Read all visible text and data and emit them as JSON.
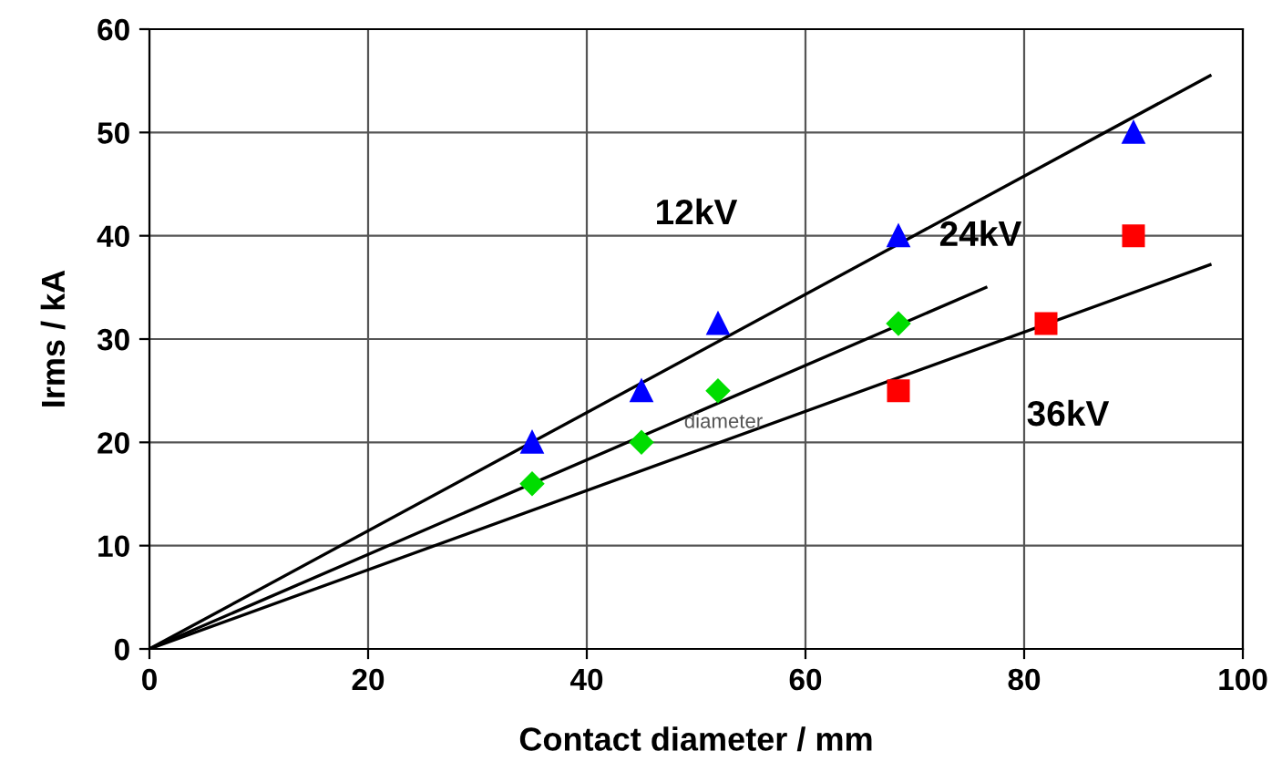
{
  "chart_data": {
    "type": "scatter",
    "xlabel": "Contact diameter / mm",
    "ylabel": "Irms / kA",
    "xlim": [
      0,
      100
    ],
    "xticks": [
      0,
      20,
      40,
      60,
      80,
      100
    ],
    "ylim": [
      0,
      60
    ],
    "yticks": [
      0,
      10,
      20,
      30,
      40,
      50,
      60
    ],
    "grid": true,
    "series": [
      {
        "color": "#0000ff",
        "marker": "triangle",
        "x": [
          35,
          45,
          52,
          68.5,
          90
        ],
        "values": [
          20,
          25,
          31.5,
          40,
          50
        ]
      },
      {
        "color": "#00dd00",
        "marker": "diamond",
        "x": [
          35,
          45,
          52,
          68.5
        ],
        "values": [
          16,
          20,
          25,
          31.5
        ]
      },
      {
        "color": "#ff0000",
        "marker": "square",
        "x": [
          68.5,
          82,
          90
        ],
        "values": [
          25,
          31.5,
          40
        ]
      },
      {
        "type": "line",
        "color": "#000000",
        "marker": "none",
        "x": [
          0,
          97
        ],
        "values": [
          0,
          55.5
        ]
      },
      {
        "type": "line",
        "color": "#000000",
        "marker": "none",
        "x": [
          0,
          76.5
        ],
        "values": [
          0,
          35
        ]
      },
      {
        "type": "line",
        "color": "#000000",
        "marker": "none",
        "x": [
          0,
          97
        ],
        "values": [
          0,
          37.2
        ]
      }
    ],
    "annotations": [
      "12kV",
      "24kV",
      "36kV",
      "diameter"
    ]
  }
}
